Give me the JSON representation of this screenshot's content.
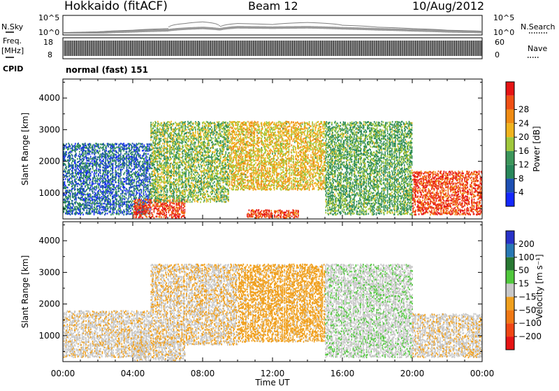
{
  "header": {
    "station": "Hokkaido (fitACF)",
    "beam": "Beam 12",
    "date": "10/Aug/2012"
  },
  "side_labels": {
    "nsky": "N.Sky",
    "freq": "Freq.",
    "freq_unit": "[MHz]",
    "cpid": "CPID",
    "nsearch": "N.Search",
    "nave": "Nave"
  },
  "cpid_text": "normal (fast) 151",
  "xaxis": {
    "label": "Time UT",
    "ticks": [
      "00:00",
      "04:00",
      "08:00",
      "12:00",
      "16:00",
      "20:00",
      "00:00"
    ]
  },
  "colors": {
    "power": [
      "#1428ff",
      "#1e50b4",
      "#28875a",
      "#3c965a",
      "#a0c83c",
      "#f0b41e",
      "#f08c14",
      "#f05014",
      "#e61414"
    ],
    "velocity": [
      "#2832c8",
      "#2878b4",
      "#287832",
      "#50c83c",
      "#c8c8c8",
      "#f0a01e",
      "#f07814",
      "#f04614",
      "#e61414"
    ]
  },
  "chart_data": [
    {
      "type": "line",
      "title": "N.Sky / N.Search",
      "xlabel": "Time UT",
      "x_range_hours": [
        0,
        24
      ],
      "ytick_labels_left": [
        "10^5",
        "10^0"
      ],
      "ytick_labels_right": [
        "10^5",
        "10^0"
      ],
      "series": [
        {
          "name": "N.Sky",
          "x": [
            0,
            2,
            4,
            6,
            7,
            8,
            9,
            10,
            12,
            14,
            16,
            18,
            20,
            22,
            24
          ],
          "values": [
            1,
            2,
            5,
            10,
            30,
            50,
            20,
            80,
            60,
            80,
            40,
            20,
            10,
            5,
            3
          ]
        },
        {
          "name": "N.Search",
          "x": [
            0,
            2,
            4,
            6,
            7,
            8,
            9,
            10,
            12,
            14,
            16,
            18,
            20,
            22,
            24
          ],
          "values": [
            2,
            3,
            10,
            30,
            1000,
            3000,
            100,
            1000,
            500,
            2000,
            300,
            80,
            30,
            10,
            5
          ]
        }
      ]
    },
    {
      "type": "line",
      "title": "Freq. / Nave",
      "xlabel": "Time UT",
      "x_range_hours": [
        0,
        24
      ],
      "ytick_labels_left": [
        "18",
        "8"
      ],
      "ytick_labels_right": [
        "60",
        "0"
      ],
      "series": [
        {
          "name": "Freq. [MHz]",
          "x": [
            0,
            24
          ],
          "values": [
            12,
            12
          ]
        },
        {
          "name": "Nave",
          "x": [
            0,
            24
          ],
          "values": [
            20,
            20
          ]
        }
      ]
    },
    {
      "type": "heatmap",
      "title": "Power [dB]",
      "xlabel": "Time UT",
      "ylabel": "Slant Range [km]",
      "x_range_hours": [
        0,
        24
      ],
      "ylim": [
        180,
        4600
      ],
      "yticks": [
        1000,
        2000,
        3000,
        4000
      ],
      "colorbar": {
        "label": "Power [dB]",
        "ticks": [
          4,
          8,
          12,
          16,
          20,
          24,
          28
        ]
      },
      "regions": [
        {
          "x": [
            0,
            5
          ],
          "y": [
            300,
            2600
          ],
          "value": 6
        },
        {
          "x": [
            4,
            7
          ],
          "y": [
            200,
            800
          ],
          "value": 26
        },
        {
          "x": [
            5,
            9.5
          ],
          "y": [
            700,
            3300
          ],
          "value": 14
        },
        {
          "x": [
            9.5,
            15
          ],
          "y": [
            1100,
            3300
          ],
          "value": 18
        },
        {
          "x": [
            10.5,
            13.5
          ],
          "y": [
            200,
            450
          ],
          "value": 26
        },
        {
          "x": [
            15,
            20
          ],
          "y": [
            300,
            3300
          ],
          "value": 12
        },
        {
          "x": [
            20,
            24
          ],
          "y": [
            300,
            1700
          ],
          "value": 26
        }
      ]
    },
    {
      "type": "heatmap",
      "title": "Velocity [m s^-1]",
      "xlabel": "Time UT",
      "ylabel": "Slant Range [km]",
      "x_range_hours": [
        0,
        24
      ],
      "ylim": [
        180,
        4600
      ],
      "yticks": [
        1000,
        2000,
        3000,
        4000
      ],
      "colorbar": {
        "label": "Velocity [m s⁻¹]",
        "ticks": [
          200,
          100,
          50,
          15,
          -15,
          -50,
          -100,
          -200
        ]
      },
      "regions": [
        {
          "x": [
            0,
            5
          ],
          "y": [
            300,
            1800
          ],
          "value": -5
        },
        {
          "x": [
            4,
            7
          ],
          "y": [
            200,
            800
          ],
          "value": -5
        },
        {
          "x": [
            5,
            10
          ],
          "y": [
            700,
            3300
          ],
          "value": -10
        },
        {
          "x": [
            10,
            15
          ],
          "y": [
            800,
            3300
          ],
          "value": -30
        },
        {
          "x": [
            15,
            20
          ],
          "y": [
            300,
            3300
          ],
          "value": 5
        },
        {
          "x": [
            20,
            24
          ],
          "y": [
            300,
            1700
          ],
          "value": -5
        }
      ]
    }
  ]
}
